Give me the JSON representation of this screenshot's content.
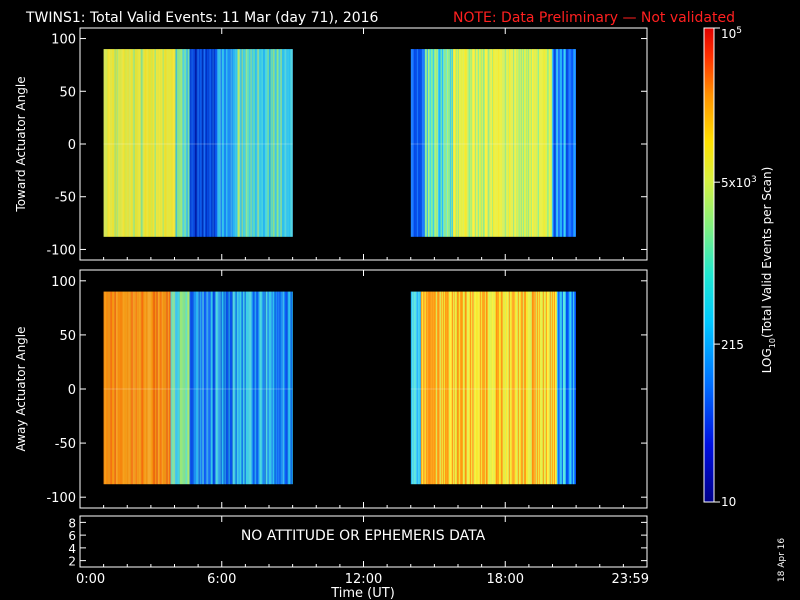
{
  "title": {
    "main": "TWINS1: Total Valid Events: 11 Mar (day  71), 2016",
    "note": "NOTE: Data Preliminary — Not validated"
  },
  "colors": {
    "note": "#ff2020",
    "background": "#000000",
    "axes": "#ffffff"
  },
  "colorbar": {
    "label": "LOG10(Total Valid Events per Scan)",
    "label_parts": {
      "prefix": "LOG",
      "sub": "10",
      "suffix": "(Total Valid Events per Scan)"
    },
    "ticks": [
      {
        "value": 10,
        "text": "10"
      },
      {
        "value": 215,
        "text": "215"
      },
      {
        "value": 5000,
        "text": "5x10",
        "sup": "3"
      },
      {
        "value": 100000,
        "text": "10",
        "sup": "5"
      }
    ],
    "range": [
      10,
      100000
    ],
    "scale": "log"
  },
  "message": "NO ATTITUDE OR EPHEMERIS DATA",
  "timestamp": "18 Apr 16",
  "chart_data": [
    {
      "type": "heatmap",
      "ylabel": "Toward Actuator Angle",
      "ylim": [
        -110,
        110
      ],
      "yticks": [
        100,
        50,
        0,
        -50,
        -100
      ],
      "blocks": [
        {
          "start": "1:00",
          "end": "9:00",
          "y_range": [
            -88,
            90
          ],
          "dominant": "yellow-green with blue bands"
        },
        {
          "start": "14:00",
          "end": "21:00",
          "y_range": [
            -88,
            90
          ],
          "dominant": "yellow-green with blue edges"
        }
      ]
    },
    {
      "type": "heatmap",
      "ylabel": "Away Actuator Angle",
      "ylim": [
        -110,
        110
      ],
      "yticks": [
        100,
        50,
        0,
        -50,
        -100
      ],
      "blocks": [
        {
          "start": "1:00",
          "end": "9:00",
          "y_range": [
            -88,
            90
          ],
          "dominant": "orange then cyan-blue"
        },
        {
          "start": "14:00",
          "end": "21:00",
          "y_range": [
            -88,
            90
          ],
          "dominant": "orange-yellow with cyan edge"
        }
      ]
    },
    {
      "type": "line",
      "ylim": [
        1,
        9
      ],
      "yticks": [
        8,
        6,
        4,
        2
      ],
      "series": []
    }
  ],
  "xaxis": {
    "label": "Time (UT)",
    "range_hours": [
      0,
      24
    ],
    "ticks": [
      {
        "h": 0,
        "text": "0:00"
      },
      {
        "h": 6,
        "text": "6:00"
      },
      {
        "h": 12,
        "text": "12:00"
      },
      {
        "h": 18,
        "text": "18:00"
      },
      {
        "h": 24,
        "text": "23:59"
      }
    ]
  }
}
